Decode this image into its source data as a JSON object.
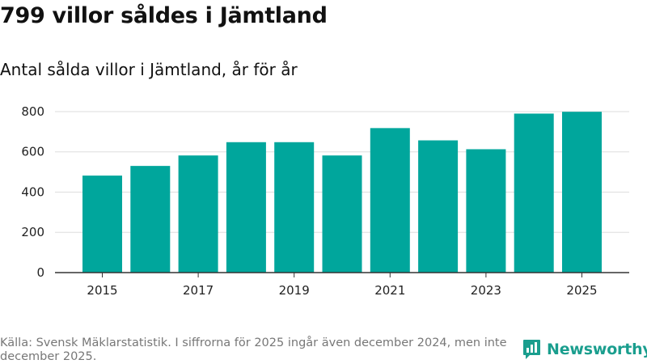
{
  "header": {
    "title": "799 villor såldes i Jämtland",
    "subtitle": "Antal sålda villor i Jämtland, år för år"
  },
  "footer": {
    "source": "Källa: Svensk Mäklarstatistik. I siffrorna för 2025 ingår även december 2024, men inte december 2025.",
    "brand": "Newsworthy"
  },
  "colors": {
    "bar": "#00a69c",
    "grid": "#dddddd",
    "axis": "#333333",
    "brand": "#1a9e8e"
  },
  "chart_data": {
    "type": "bar",
    "title": "799 villor såldes i Jämtland",
    "subtitle": "Antal sålda villor i Jämtland, år för år",
    "xlabel": "",
    "ylabel": "",
    "categories": [
      "2015",
      "2016",
      "2017",
      "2018",
      "2019",
      "2020",
      "2021",
      "2022",
      "2023",
      "2024",
      "2025"
    ],
    "values": [
      482,
      530,
      582,
      648,
      648,
      582,
      718,
      657,
      613,
      790,
      799
    ],
    "x_tick_labels": [
      "2015",
      "2017",
      "2019",
      "2021",
      "2023",
      "2025"
    ],
    "y_ticks": [
      0,
      200,
      400,
      600,
      800
    ],
    "ylim": [
      0,
      840
    ],
    "grid": true,
    "legend": "none"
  }
}
